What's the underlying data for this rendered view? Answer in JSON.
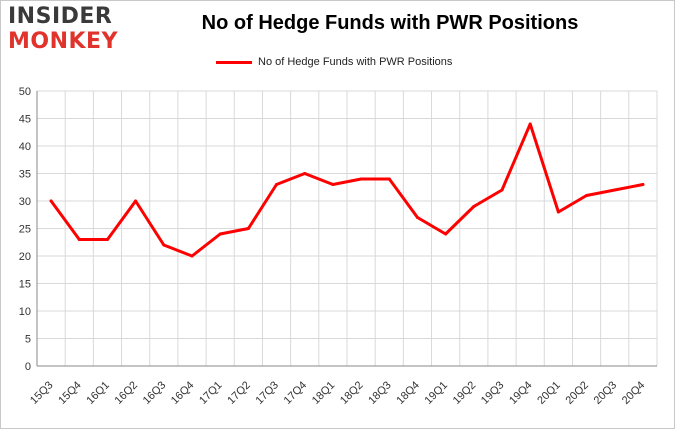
{
  "logo": {
    "line1": "INSIDER",
    "line2": "MONKEY"
  },
  "colors": {
    "series": "#ff0000",
    "grid": "#d9d9d9",
    "axis": "#888888",
    "logo_top": "#3a3a3a",
    "logo_bottom": "#e0332c"
  },
  "chart_data": {
    "type": "line",
    "title": "No of Hedge Funds with PWR Positions",
    "xlabel": "",
    "ylabel": "",
    "ylim": [
      0,
      50
    ],
    "yticks": [
      0,
      5,
      10,
      15,
      20,
      25,
      30,
      35,
      40,
      45,
      50
    ],
    "grid": true,
    "legend_position": "top-center",
    "categories": [
      "15Q3",
      "15Q4",
      "16Q1",
      "16Q2",
      "16Q3",
      "16Q4",
      "17Q1",
      "17Q2",
      "17Q3",
      "17Q4",
      "18Q1",
      "18Q2",
      "18Q3",
      "18Q4",
      "19Q1",
      "19Q2",
      "19Q3",
      "19Q4",
      "20Q1",
      "20Q2",
      "20Q3",
      "20Q4"
    ],
    "series": [
      {
        "name": "No of Hedge Funds with PWR Positions",
        "values": [
          30,
          23,
          23,
          30,
          22,
          20,
          24,
          25,
          33,
          35,
          33,
          34,
          34,
          27,
          24,
          29,
          32,
          44,
          28,
          31,
          32,
          33
        ]
      }
    ]
  }
}
